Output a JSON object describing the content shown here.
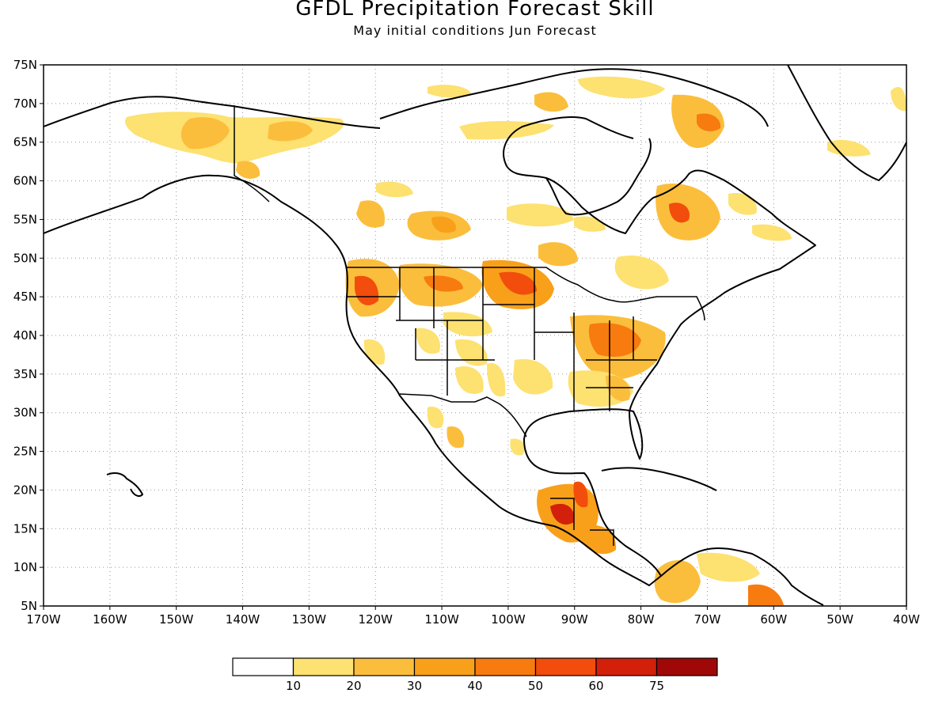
{
  "title": "GFDL Precipitation Forecast Skill",
  "subtitle": "May initial conditions  Jun Forecast",
  "map": {
    "lon_range": [
      -170,
      -40
    ],
    "lat_range": [
      5,
      75
    ],
    "lat_labels": [
      "5N",
      "10N",
      "15N",
      "20N",
      "25N",
      "30N",
      "35N",
      "40N",
      "45N",
      "50N",
      "55N",
      "60N",
      "65N",
      "70N",
      "75N"
    ],
    "lon_labels": [
      "170W",
      "160W",
      "150W",
      "140W",
      "130W",
      "120W",
      "110W",
      "100W",
      "90W",
      "80W",
      "70W",
      "60W",
      "50W",
      "40W"
    ],
    "gridlines": "dotted"
  },
  "legend": {
    "labels": [
      "10",
      "20",
      "30",
      "40",
      "50",
      "60",
      "75"
    ],
    "colors": [
      "#ffffff",
      "#fde171",
      "#fbbe3c",
      "#f9a01a",
      "#f77b0f",
      "#f24d0c",
      "#d2200b",
      "#a00808"
    ]
  }
}
